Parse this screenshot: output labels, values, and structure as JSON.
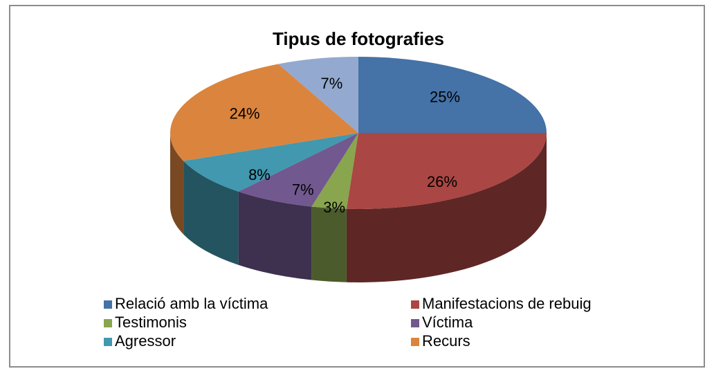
{
  "chart_data": {
    "type": "pie",
    "title": "Tipus de fotografies",
    "categories": [
      "Relació amb  la víctima",
      "Manifestacions de rebuig",
      "Testimonis",
      "Víctima",
      "Agressor",
      "Recurs",
      null
    ],
    "values": [
      25,
      26,
      3,
      7,
      8,
      24,
      7
    ],
    "value_labels": [
      "25%",
      "26%",
      "3%",
      "7%",
      "8%",
      "24%",
      "7%"
    ],
    "colors": [
      "#4572a7",
      "#aa4643",
      "#89a54e",
      "#71588f",
      "#4198af",
      "#db843d",
      "#93a9cf"
    ],
    "legend": "bottom"
  }
}
